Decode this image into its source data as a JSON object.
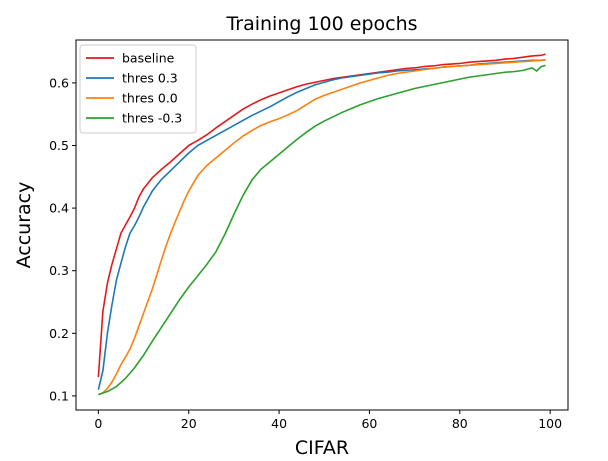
{
  "chart_data": {
    "type": "line",
    "title": "Training 100 epochs",
    "xlabel": "CIFAR",
    "ylabel": "Accuracy",
    "xlim": [
      -4.95,
      103.95
    ],
    "ylim": [
      0.0775,
      0.6685
    ],
    "xticks": [
      0,
      20,
      40,
      60,
      80,
      100
    ],
    "yticks": [
      0.1,
      0.2,
      0.3,
      0.4,
      0.5,
      0.6
    ],
    "ytick_labels": [
      "0.1",
      "0.2",
      "0.3",
      "0.4",
      "0.5",
      "0.6"
    ],
    "grid": false,
    "legend_position": "top-left",
    "series": [
      {
        "name": "baseline",
        "color": "#e31a1c",
        "x": [
          0,
          1,
          2,
          3,
          4,
          5,
          6,
          7,
          8,
          9,
          10,
          12,
          14,
          16,
          18,
          20,
          22,
          24,
          26,
          28,
          30,
          32,
          34,
          36,
          38,
          40,
          42,
          44,
          46,
          48,
          50,
          52,
          54,
          56,
          58,
          60,
          62,
          64,
          66,
          68,
          70,
          72,
          74,
          76,
          78,
          80,
          82,
          84,
          86,
          88,
          90,
          92,
          94,
          96,
          98,
          99
        ],
        "y": [
          0.13,
          0.235,
          0.28,
          0.31,
          0.335,
          0.36,
          0.373,
          0.386,
          0.4,
          0.418,
          0.431,
          0.449,
          0.462,
          0.474,
          0.487,
          0.5,
          0.508,
          0.517,
          0.528,
          0.538,
          0.548,
          0.558,
          0.566,
          0.573,
          0.579,
          0.584,
          0.589,
          0.594,
          0.598,
          0.601,
          0.604,
          0.607,
          0.609,
          0.611,
          0.613,
          0.615,
          0.617,
          0.619,
          0.621,
          0.623,
          0.624,
          0.626,
          0.627,
          0.629,
          0.63,
          0.631,
          0.633,
          0.634,
          0.635,
          0.636,
          0.638,
          0.639,
          0.641,
          0.643,
          0.644,
          0.646
        ]
      },
      {
        "name": "thres 0.3",
        "color": "#1f77b4",
        "x": [
          0,
          1,
          2,
          3,
          4,
          5,
          6,
          7,
          8,
          9,
          10,
          12,
          14,
          16,
          18,
          20,
          22,
          24,
          26,
          28,
          30,
          32,
          34,
          36,
          38,
          40,
          42,
          44,
          46,
          48,
          50,
          52,
          54,
          56,
          58,
          60,
          62,
          64,
          66,
          68,
          70,
          72,
          74,
          76,
          78,
          80,
          82,
          84,
          86,
          88,
          90,
          92,
          94,
          96,
          98,
          99
        ],
        "y": [
          0.11,
          0.14,
          0.2,
          0.245,
          0.285,
          0.312,
          0.338,
          0.36,
          0.372,
          0.386,
          0.402,
          0.428,
          0.446,
          0.46,
          0.474,
          0.488,
          0.5,
          0.508,
          0.516,
          0.524,
          0.532,
          0.54,
          0.548,
          0.555,
          0.562,
          0.57,
          0.578,
          0.585,
          0.591,
          0.597,
          0.601,
          0.605,
          0.608,
          0.61,
          0.612,
          0.614,
          0.616,
          0.617,
          0.619,
          0.62,
          0.621,
          0.622,
          0.623,
          0.625,
          0.626,
          0.627,
          0.628,
          0.63,
          0.631,
          0.632,
          0.633,
          0.634,
          0.635,
          0.636,
          0.636,
          0.637
        ]
      },
      {
        "name": "thres 0.0",
        "color": "#ff7f0e",
        "x": [
          0,
          1,
          2,
          3,
          4,
          5,
          6,
          7,
          8,
          9,
          10,
          11,
          12,
          13,
          14,
          15,
          16,
          17,
          18,
          19,
          20,
          22,
          24,
          26,
          28,
          30,
          32,
          34,
          36,
          38,
          40,
          42,
          44,
          46,
          48,
          50,
          52,
          54,
          56,
          58,
          60,
          62,
          64,
          66,
          68,
          70,
          72,
          74,
          76,
          78,
          80,
          82,
          84,
          86,
          88,
          90,
          92,
          94,
          96,
          98,
          99
        ],
        "y": [
          0.102,
          0.105,
          0.112,
          0.122,
          0.135,
          0.15,
          0.162,
          0.175,
          0.192,
          0.212,
          0.232,
          0.252,
          0.272,
          0.295,
          0.318,
          0.34,
          0.36,
          0.378,
          0.395,
          0.412,
          0.427,
          0.452,
          0.468,
          0.48,
          0.492,
          0.504,
          0.515,
          0.524,
          0.532,
          0.538,
          0.543,
          0.549,
          0.556,
          0.565,
          0.574,
          0.58,
          0.585,
          0.59,
          0.595,
          0.6,
          0.604,
          0.608,
          0.612,
          0.615,
          0.617,
          0.619,
          0.621,
          0.623,
          0.625,
          0.626,
          0.627,
          0.628,
          0.629,
          0.63,
          0.631,
          0.632,
          0.633,
          0.634,
          0.635,
          0.636,
          0.637
        ]
      },
      {
        "name": "thres -0.3",
        "color": "#2ca02c",
        "x": [
          0,
          2,
          4,
          6,
          8,
          10,
          12,
          14,
          16,
          18,
          20,
          22,
          24,
          26,
          28,
          30,
          32,
          34,
          36,
          38,
          40,
          42,
          44,
          46,
          48,
          50,
          52,
          54,
          56,
          58,
          60,
          62,
          64,
          66,
          68,
          70,
          72,
          74,
          76,
          78,
          80,
          82,
          84,
          86,
          88,
          90,
          92,
          94,
          95,
          96,
          97,
          98,
          99
        ],
        "y": [
          0.102,
          0.107,
          0.115,
          0.128,
          0.145,
          0.165,
          0.188,
          0.21,
          0.232,
          0.254,
          0.274,
          0.292,
          0.31,
          0.33,
          0.358,
          0.39,
          0.42,
          0.445,
          0.462,
          0.474,
          0.486,
          0.498,
          0.51,
          0.521,
          0.531,
          0.539,
          0.546,
          0.553,
          0.559,
          0.565,
          0.57,
          0.575,
          0.579,
          0.583,
          0.587,
          0.591,
          0.594,
          0.597,
          0.6,
          0.603,
          0.606,
          0.609,
          0.611,
          0.613,
          0.615,
          0.617,
          0.618,
          0.62,
          0.622,
          0.624,
          0.619,
          0.626,
          0.628
        ]
      }
    ]
  }
}
